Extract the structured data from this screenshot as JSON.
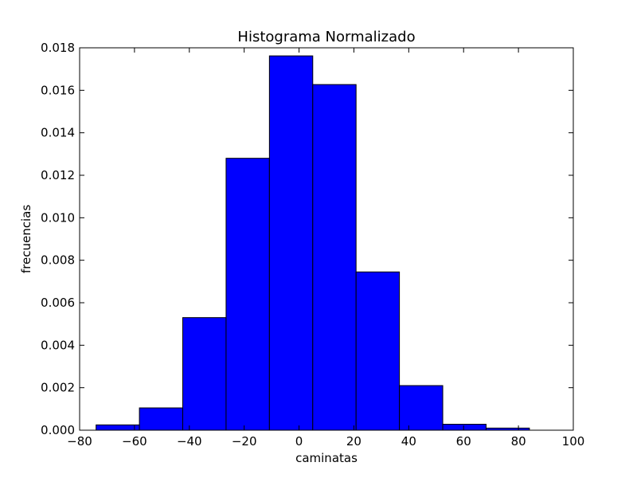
{
  "chart_data": {
    "type": "bar",
    "title": "Histograma Normalizado",
    "xlabel": "caminatas",
    "ylabel": "frecuencias",
    "xlim": [
      -80,
      100
    ],
    "ylim": [
      0,
      0.018
    ],
    "xticks": [
      -80,
      -60,
      -40,
      -20,
      0,
      20,
      40,
      60,
      80,
      100
    ],
    "xtick_labels": [
      "−80",
      "−60",
      "−40",
      "−20",
      "0",
      "20",
      "40",
      "60",
      "80",
      "100"
    ],
    "yticks": [
      0,
      0.002,
      0.004,
      0.006,
      0.008,
      0.01,
      0.012,
      0.014,
      0.016,
      0.018
    ],
    "ytick_labels": [
      "0.000",
      "0.002",
      "0.004",
      "0.006",
      "0.008",
      "0.010",
      "0.012",
      "0.014",
      "0.016",
      "0.018"
    ],
    "bin_edges": [
      -74,
      -58.2,
      -42.4,
      -26.6,
      -10.8,
      5,
      20.8,
      36.6,
      52.4,
      68.2,
      84
    ],
    "values": [
      0.00025,
      0.00105,
      0.0053,
      0.0128,
      0.01762,
      0.01627,
      0.00745,
      0.0021,
      0.00028,
      0.0001
    ],
    "bar_color": "#0000ff",
    "edge_color": "#000000",
    "grid": false
  }
}
